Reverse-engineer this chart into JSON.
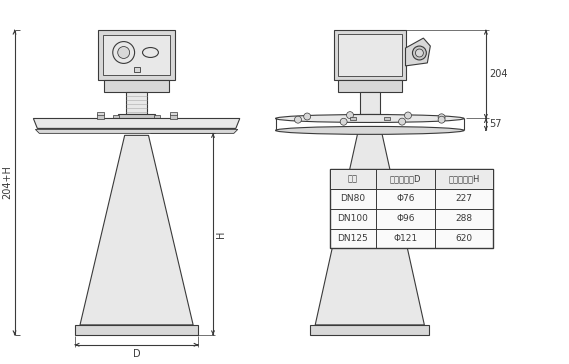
{
  "bg_color": "#ffffff",
  "line_color": "#3a3a3a",
  "fill_light": "#e8e8e8",
  "fill_mid": "#d8d8d8",
  "fill_dark": "#c8c8c8",
  "table_header": [
    "法屰",
    "喇叭口直径D",
    "喇叭口高度H"
  ],
  "table_rows": [
    [
      "DN80",
      "Φ76",
      "227"
    ],
    [
      "DN100",
      "Φ96",
      "288"
    ],
    [
      "DN125",
      "Φ121",
      "620"
    ]
  ],
  "dim_204": "204",
  "dim_57": "57",
  "dim_H": "H",
  "dim_204H": "204+H",
  "dim_D": "D",
  "font_size": 7
}
